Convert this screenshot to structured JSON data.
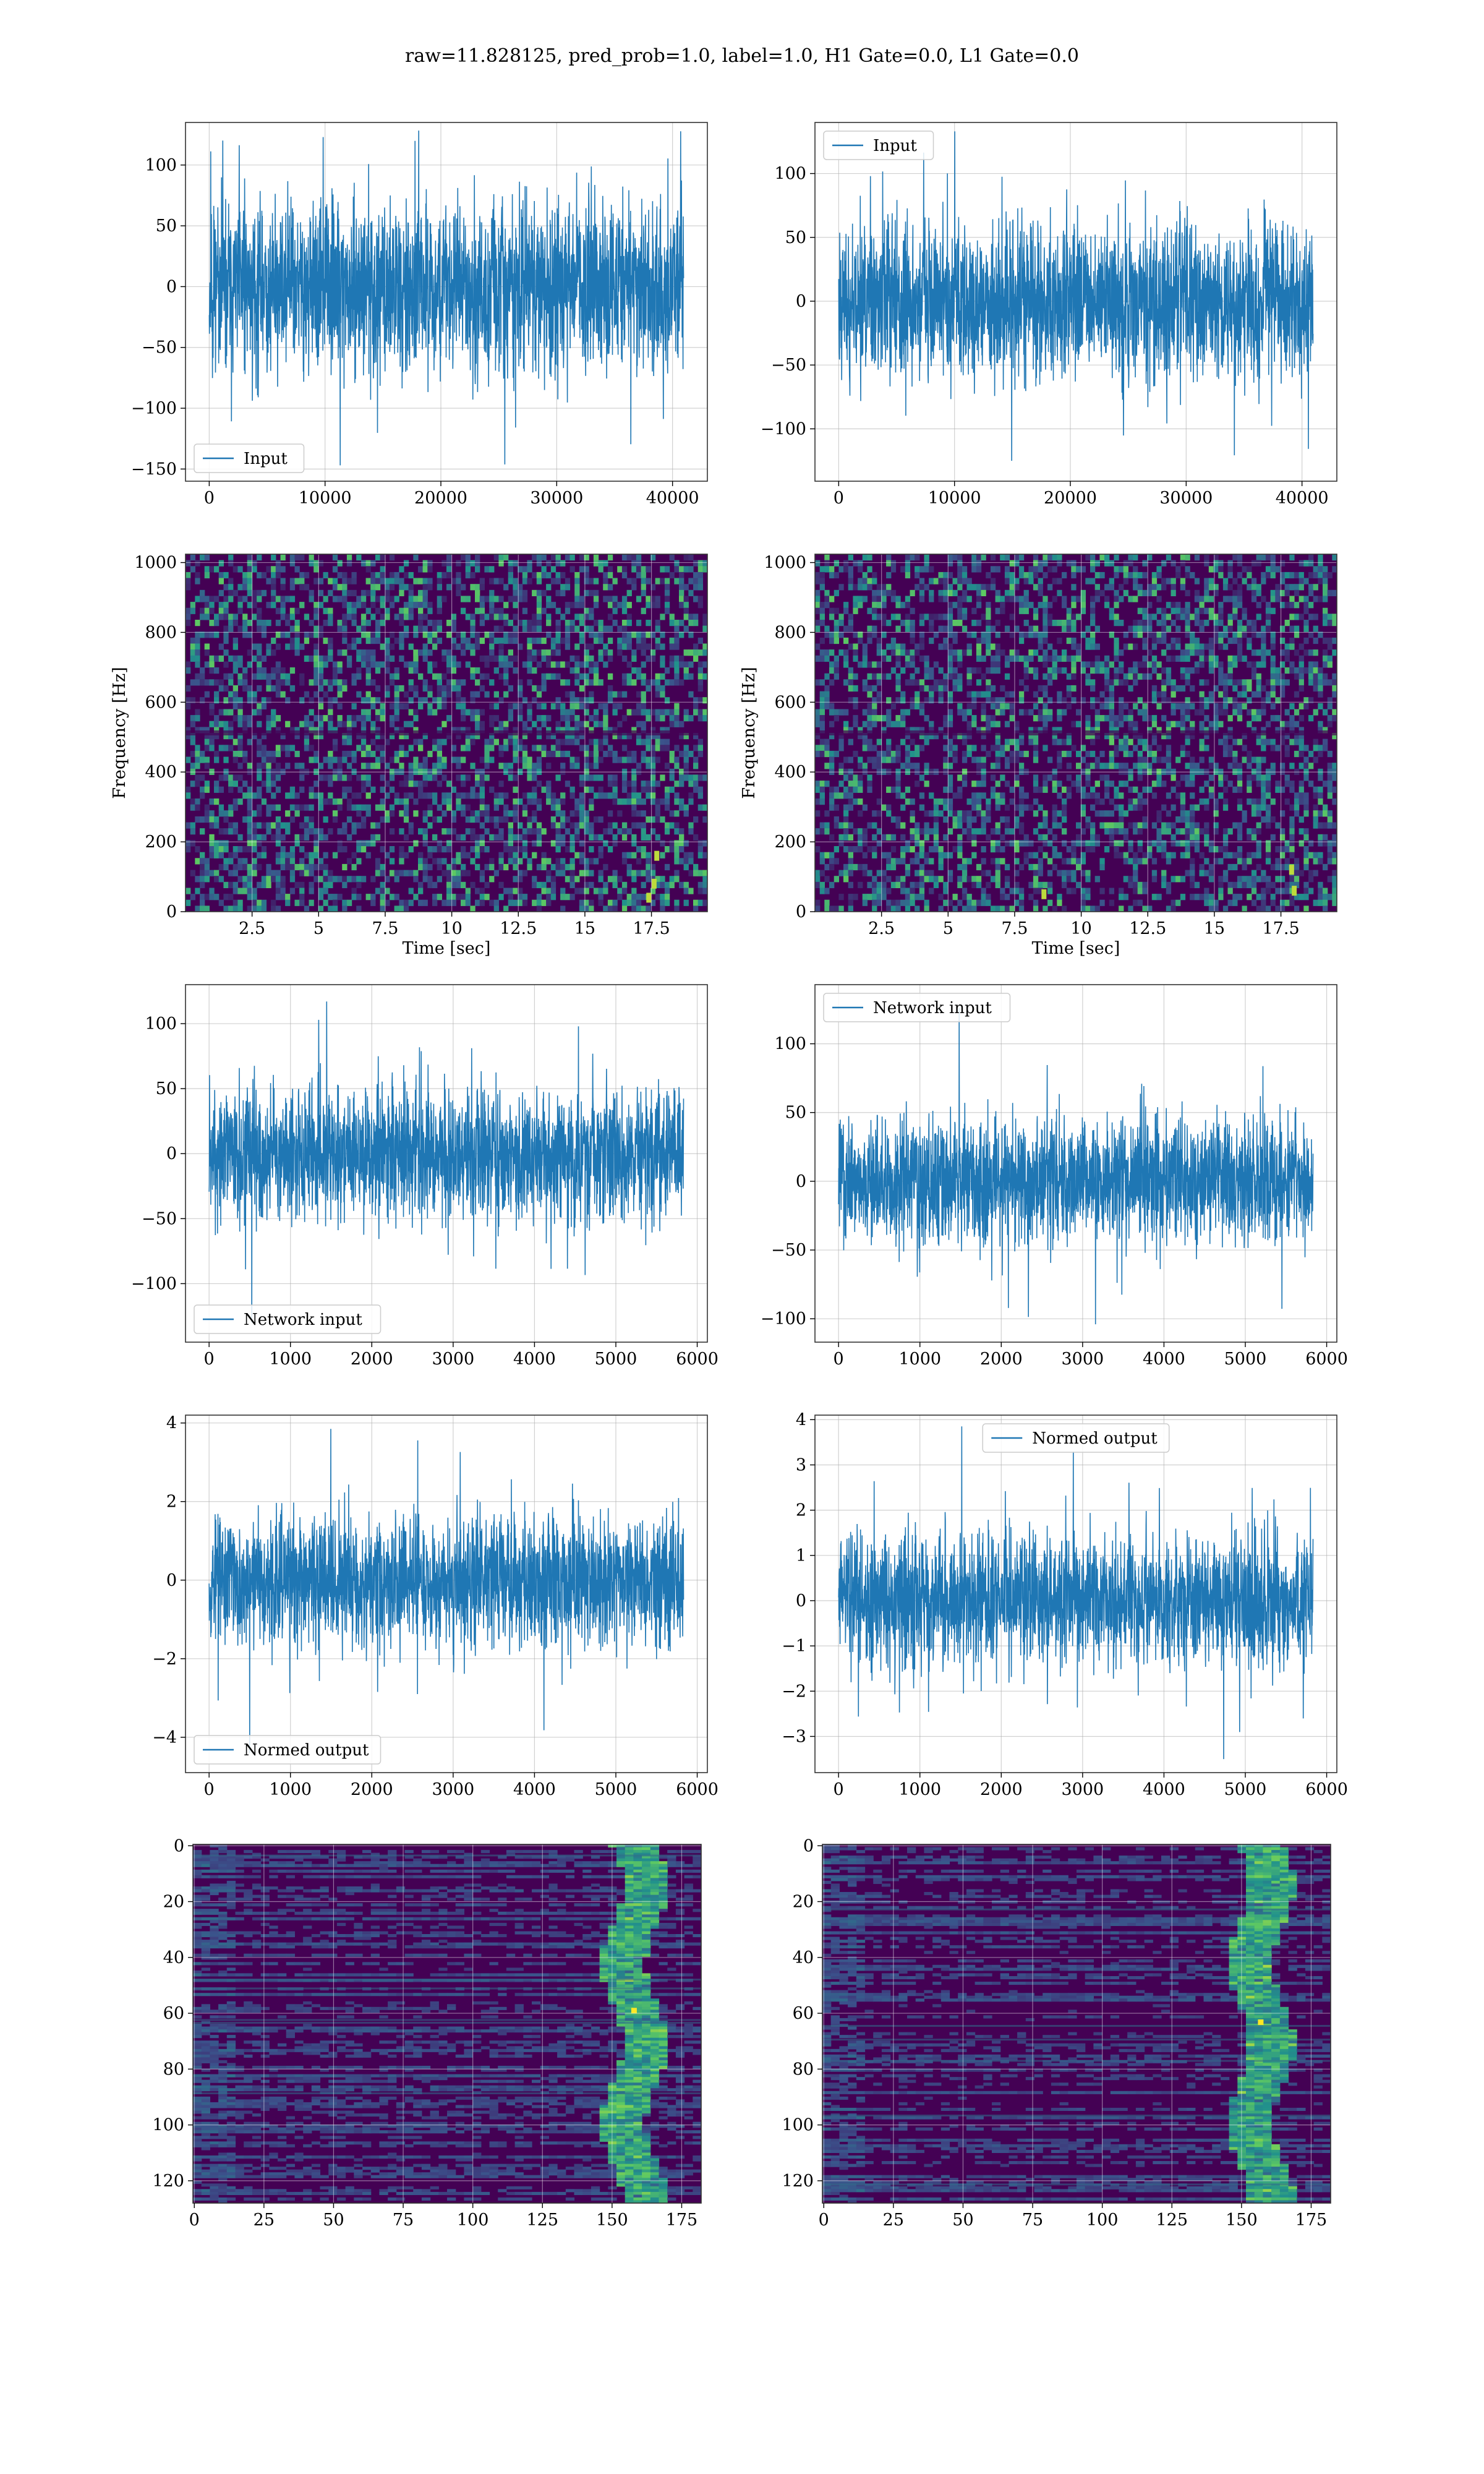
{
  "figure": {
    "title": "raw=11.828125, pred_prob=1.0, label=1.0, H1 Gate=0.0, L1 Gate=0.0"
  },
  "colors": {
    "series": "#1f77b4",
    "grid": "#b0b0b0",
    "viridis_low": "#440154",
    "viridis_mid": "#21918c",
    "viridis_high": "#fde725"
  },
  "chart_data": [
    {
      "id": "p1",
      "type": "line",
      "title": "",
      "xlabel": "",
      "ylabel": "",
      "series": [
        {
          "name": "Input"
        }
      ],
      "legend": "lower-left",
      "grid": true,
      "xlim": [
        -2048,
        43008
      ],
      "ylim": [
        -160,
        135
      ],
      "xticks": [
        0,
        10000,
        20000,
        30000,
        40000
      ],
      "yticks": [
        -150,
        -100,
        -50,
        0,
        50,
        100
      ],
      "x_range": [
        0,
        40960
      ],
      "envelope": 45,
      "spike_max": 123,
      "spike_min": -147,
      "seed": 11
    },
    {
      "id": "p2",
      "type": "line",
      "title": "",
      "xlabel": "",
      "ylabel": "",
      "series": [
        {
          "name": "Input"
        }
      ],
      "legend": "upper-left",
      "grid": true,
      "xlim": [
        -2048,
        43008
      ],
      "ylim": [
        -141,
        140
      ],
      "xticks": [
        0,
        10000,
        20000,
        30000,
        40000
      ],
      "yticks": [
        -100,
        -50,
        0,
        50,
        100
      ],
      "x_range": [
        0,
        40960
      ],
      "envelope": 40,
      "spike_max": 133,
      "spike_min": -125,
      "seed": 23
    },
    {
      "id": "p3",
      "type": "heatmap",
      "title": "",
      "xlabel": "Time [sec]",
      "ylabel": "Frequency [Hz]",
      "grid": true,
      "xlim": [
        0,
        19.6
      ],
      "ylim": [
        0,
        1024
      ],
      "xticks": [
        2.5,
        5.0,
        7.5,
        10.0,
        12.5,
        15.0,
        17.5
      ],
      "yticks": [
        0,
        200,
        400,
        600,
        800,
        1000
      ],
      "hot_spots": [
        [
          17.6,
          80
        ],
        [
          17.7,
          160
        ],
        [
          17.4,
          40
        ]
      ],
      "seed": 5
    },
    {
      "id": "p4",
      "type": "heatmap",
      "title": "",
      "xlabel": "Time [sec]",
      "ylabel": "Frequency [Hz]",
      "grid": true,
      "xlim": [
        0,
        19.6
      ],
      "ylim": [
        0,
        1024
      ],
      "xticks": [
        2.5,
        5.0,
        7.5,
        10.0,
        12.5,
        15.0,
        17.5
      ],
      "yticks": [
        0,
        200,
        400,
        600,
        800,
        1000
      ],
      "hot_spots": [
        [
          8.6,
          50
        ],
        [
          18.0,
          60
        ],
        [
          17.9,
          120
        ]
      ],
      "seed": 9
    },
    {
      "id": "p5",
      "type": "line",
      "title": "",
      "xlabel": "",
      "ylabel": "",
      "series": [
        {
          "name": "Network input"
        }
      ],
      "legend": "lower-left",
      "grid": true,
      "xlim": [
        -290,
        6125
      ],
      "ylim": [
        -145,
        130
      ],
      "xticks": [
        0,
        1000,
        2000,
        3000,
        4000,
        5000,
        6000
      ],
      "yticks": [
        -100,
        -50,
        0,
        50,
        100
      ],
      "x_range": [
        0,
        5832
      ],
      "envelope": 34,
      "spike_max": 117,
      "spike_min": -130,
      "seed": 31
    },
    {
      "id": "p6",
      "type": "line",
      "title": "",
      "xlabel": "",
      "ylabel": "",
      "series": [
        {
          "name": "Network input"
        }
      ],
      "legend": "upper-left",
      "grid": true,
      "xlim": [
        -290,
        6125
      ],
      "ylim": [
        -117,
        143
      ],
      "xticks": [
        0,
        1000,
        2000,
        3000,
        4000,
        5000,
        6000
      ],
      "yticks": [
        -100,
        -50,
        0,
        50,
        100
      ],
      "x_range": [
        0,
        5832
      ],
      "envelope": 30,
      "spike_max": 126,
      "spike_min": -104,
      "seed": 47
    },
    {
      "id": "p7",
      "type": "line",
      "title": "",
      "xlabel": "",
      "ylabel": "",
      "series": [
        {
          "name": "Normed output"
        }
      ],
      "legend": "lower-left",
      "grid": true,
      "xlim": [
        -290,
        6125
      ],
      "ylim": [
        -4.9,
        4.2
      ],
      "xticks": [
        0,
        1000,
        2000,
        3000,
        4000,
        5000,
        6000
      ],
      "yticks": [
        -4,
        -2,
        0,
        2,
        4
      ],
      "x_range": [
        0,
        5832
      ],
      "envelope": 1.1,
      "spike_max": 3.85,
      "spike_min": -4.4,
      "seed": 53
    },
    {
      "id": "p8",
      "type": "line",
      "title": "",
      "xlabel": "",
      "ylabel": "",
      "series": [
        {
          "name": "Normed output"
        }
      ],
      "legend": "upper-center",
      "grid": true,
      "xlim": [
        -290,
        6125
      ],
      "ylim": [
        -3.8,
        4.1
      ],
      "xticks": [
        0,
        1000,
        2000,
        3000,
        4000,
        5000,
        6000
      ],
      "yticks": [
        -3,
        -2,
        -1,
        0,
        1,
        2,
        3,
        4
      ],
      "x_range": [
        0,
        5832
      ],
      "envelope": 0.95,
      "spike_max": 3.85,
      "spike_min": -3.5,
      "seed": 61
    },
    {
      "id": "p9",
      "type": "heatmap",
      "title": "",
      "xlabel": "",
      "ylabel": "",
      "grid": true,
      "y_inverted": true,
      "xlim": [
        -0.5,
        182
      ],
      "ylim": [
        -0.5,
        128
      ],
      "xticks": [
        0,
        25,
        50,
        75,
        100,
        125,
        150,
        175
      ],
      "yticks": [
        0,
        20,
        40,
        60,
        80,
        100,
        120
      ],
      "band_center": 158,
      "seed": 71
    },
    {
      "id": "p10",
      "type": "heatmap",
      "title": "",
      "xlabel": "",
      "ylabel": "",
      "grid": true,
      "y_inverted": true,
      "xlim": [
        -0.5,
        182
      ],
      "ylim": [
        -0.5,
        128
      ],
      "xticks": [
        0,
        25,
        50,
        75,
        100,
        125,
        150,
        175
      ],
      "yticks": [
        0,
        20,
        40,
        60,
        80,
        100,
        120
      ],
      "band_center": 157,
      "seed": 83
    }
  ]
}
